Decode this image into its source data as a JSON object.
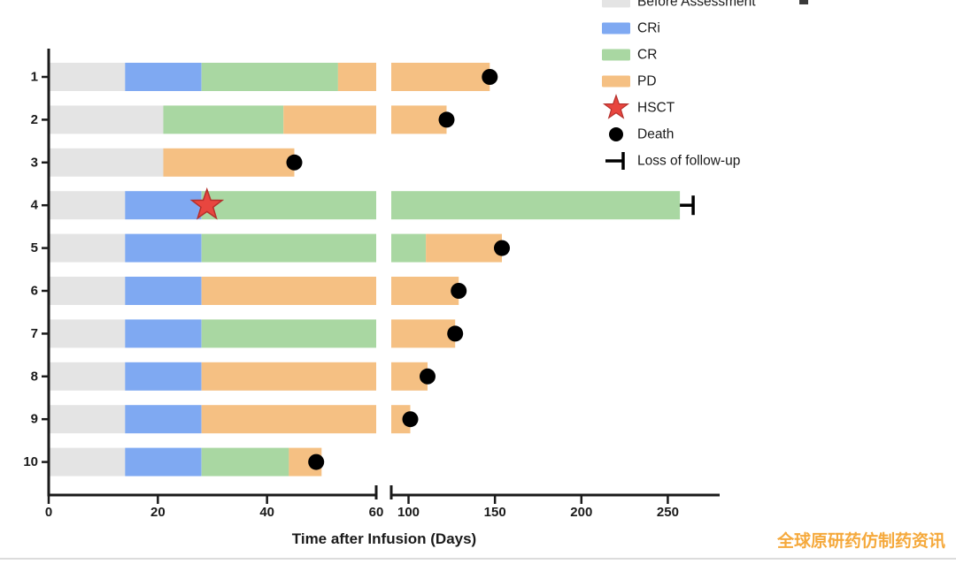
{
  "figure": {
    "watermark": {
      "text": "全球原研药仿制药资讯",
      "color": "#F5A93C"
    }
  },
  "chart_data": {
    "type": "bar",
    "variant": "swimmer-plot-horizontal-stacked-broken-axis",
    "title": "",
    "xlabel": "Time after Infusion (Days)",
    "ylabel": "",
    "grid": false,
    "legend_position": "top-right",
    "axis_break": {
      "left_domain": [
        0,
        60
      ],
      "right_domain": [
        90,
        280
      ]
    },
    "x_ticks_left": [
      0,
      20,
      40,
      60
    ],
    "x_ticks_right": [
      100,
      150,
      200,
      250
    ],
    "y_categories": [
      "1",
      "2",
      "3",
      "4",
      "5",
      "6",
      "7",
      "8",
      "9",
      "10"
    ],
    "phase_colors": {
      "Before Assessment": "#E4E4E4",
      "CRi": "#7FA9F2",
      "CR": "#A9D7A2",
      "PD": "#F5C083"
    },
    "marker_colors": {
      "HSCT_fill": "#E8463F",
      "HSCT_stroke": "#B5302C",
      "Death": "#000000",
      "Loss_of_follow_up": "#000000"
    },
    "legend": [
      {
        "label": "Before Assessment",
        "type": "swatch",
        "phase": "Before Assessment"
      },
      {
        "label": "CRi",
        "type": "swatch",
        "phase": "CRi"
      },
      {
        "label": "CR",
        "type": "swatch",
        "phase": "CR"
      },
      {
        "label": "PD",
        "type": "swatch",
        "phase": "PD"
      },
      {
        "label": "HSCT",
        "type": "star"
      },
      {
        "label": "Death",
        "type": "dot"
      },
      {
        "label": "Loss of follow-up",
        "type": "censor"
      }
    ],
    "patients": [
      {
        "id": "1",
        "segments": [
          {
            "phase": "Before Assessment",
            "start": 0,
            "end": 14
          },
          {
            "phase": "CRi",
            "start": 14,
            "end": 28
          },
          {
            "phase": "CR",
            "start": 28,
            "end": 53
          },
          {
            "phase": "PD",
            "start": 53,
            "end": 147
          }
        ],
        "events": [
          {
            "type": "Death",
            "day": 147
          }
        ]
      },
      {
        "id": "2",
        "segments": [
          {
            "phase": "Before Assessment",
            "start": 0,
            "end": 21
          },
          {
            "phase": "CR",
            "start": 21,
            "end": 43
          },
          {
            "phase": "PD",
            "start": 43,
            "end": 122
          }
        ],
        "events": [
          {
            "type": "Death",
            "day": 122
          }
        ]
      },
      {
        "id": "3",
        "segments": [
          {
            "phase": "Before Assessment",
            "start": 0,
            "end": 21
          },
          {
            "phase": "PD",
            "start": 21,
            "end": 45
          }
        ],
        "events": [
          {
            "type": "Death",
            "day": 45
          }
        ]
      },
      {
        "id": "4",
        "segments": [
          {
            "phase": "Before Assessment",
            "start": 0,
            "end": 14
          },
          {
            "phase": "CRi",
            "start": 14,
            "end": 28
          },
          {
            "phase": "CR",
            "start": 28,
            "end": 257
          }
        ],
        "events": [
          {
            "type": "HSCT",
            "day": 29
          },
          {
            "type": "Loss of follow-up",
            "day": 257
          }
        ]
      },
      {
        "id": "5",
        "segments": [
          {
            "phase": "Before Assessment",
            "start": 0,
            "end": 14
          },
          {
            "phase": "CRi",
            "start": 14,
            "end": 28
          },
          {
            "phase": "CR",
            "start": 28,
            "end": 110
          },
          {
            "phase": "PD",
            "start": 110,
            "end": 154
          }
        ],
        "events": [
          {
            "type": "Death",
            "day": 154
          }
        ]
      },
      {
        "id": "6",
        "segments": [
          {
            "phase": "Before Assessment",
            "start": 0,
            "end": 14
          },
          {
            "phase": "CRi",
            "start": 14,
            "end": 28
          },
          {
            "phase": "PD",
            "start": 28,
            "end": 129
          }
        ],
        "events": [
          {
            "type": "Death",
            "day": 129
          }
        ]
      },
      {
        "id": "7",
        "segments": [
          {
            "phase": "Before Assessment",
            "start": 0,
            "end": 14
          },
          {
            "phase": "CRi",
            "start": 14,
            "end": 28
          },
          {
            "phase": "CR",
            "start": 28,
            "end": 75
          },
          {
            "phase": "PD",
            "start": 75,
            "end": 127
          }
        ],
        "events": [
          {
            "type": "Death",
            "day": 127
          }
        ]
      },
      {
        "id": "8",
        "segments": [
          {
            "phase": "Before Assessment",
            "start": 0,
            "end": 14
          },
          {
            "phase": "CRi",
            "start": 14,
            "end": 28
          },
          {
            "phase": "PD",
            "start": 28,
            "end": 111
          }
        ],
        "events": [
          {
            "type": "Death",
            "day": 111
          }
        ]
      },
      {
        "id": "9",
        "segments": [
          {
            "phase": "Before Assessment",
            "start": 0,
            "end": 14
          },
          {
            "phase": "CRi",
            "start": 14,
            "end": 28
          },
          {
            "phase": "PD",
            "start": 28,
            "end": 101
          }
        ],
        "events": [
          {
            "type": "Death",
            "day": 101
          }
        ]
      },
      {
        "id": "10",
        "segments": [
          {
            "phase": "Before Assessment",
            "start": 0,
            "end": 14
          },
          {
            "phase": "CRi",
            "start": 14,
            "end": 28
          },
          {
            "phase": "CR",
            "start": 28,
            "end": 44
          },
          {
            "phase": "PD",
            "start": 44,
            "end": 50
          }
        ],
        "events": [
          {
            "type": "Death",
            "day": 49
          }
        ]
      }
    ]
  }
}
